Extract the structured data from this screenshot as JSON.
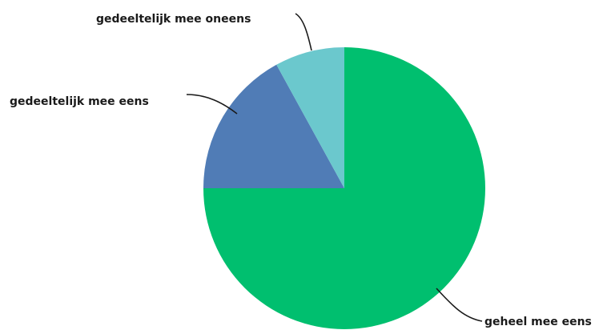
{
  "chart_data": {
    "type": "pie",
    "title": "",
    "slices": [
      {
        "label": "geheel mee eens",
        "value": 75,
        "color": "#00bf6f"
      },
      {
        "label": "gedeeltelijk mee eens",
        "value": 17,
        "color": "#507cb6"
      },
      {
        "label": "gedeeltelijk mee oneens",
        "value": 8,
        "color": "#6bc8cd"
      }
    ],
    "start": "12 o'clock",
    "direction": "clockwise",
    "legend": "none (direct labels with leader lines)"
  }
}
